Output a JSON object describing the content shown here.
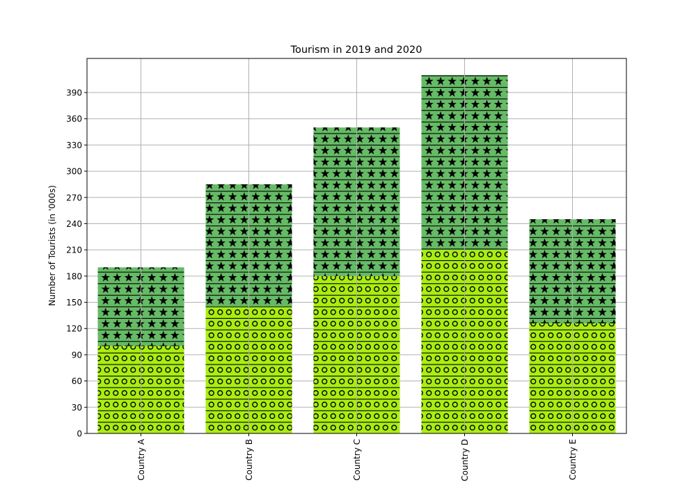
{
  "chart_data": {
    "type": "bar",
    "stacked": true,
    "title": "Tourism in 2019 and 2020",
    "xlabel": "",
    "ylabel": "Number of Tourists (in '000s)",
    "categories": [
      "Country A",
      "Country B",
      "Country C",
      "Country D",
      "Country E"
    ],
    "series": [
      {
        "values": [
          100,
          145,
          180,
          210,
          126
        ],
        "color": "#aaee11",
        "hatch": "circles-and-horizontal-lines"
      },
      {
        "values": [
          90,
          140,
          170,
          200,
          119
        ],
        "color": "#66bb66",
        "hatch": "stars-and-horizontal-lines"
      }
    ],
    "yticks": [
      0,
      30,
      60,
      90,
      120,
      150,
      180,
      210,
      240,
      270,
      300,
      330,
      360,
      390
    ],
    "ylim": [
      0,
      429
    ],
    "grid": true,
    "xtick_rotation": 90
  }
}
